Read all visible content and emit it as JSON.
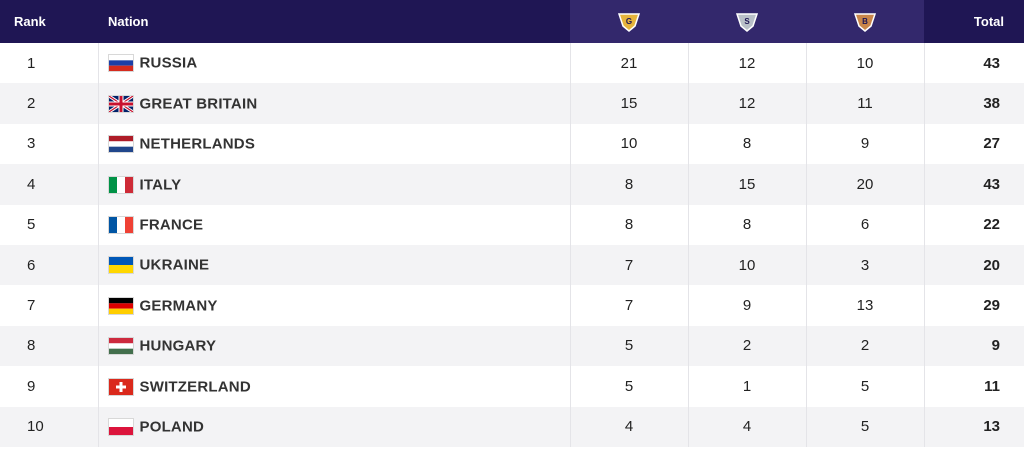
{
  "header": {
    "rank": "Rank",
    "nation": "Nation",
    "gold_letter": "G",
    "silver_letter": "S",
    "bronze_letter": "B",
    "total": "Total"
  },
  "colors": {
    "header_bg": "#1f1654",
    "medal_header_bg": "#33286c",
    "gold": "#e6b43c",
    "silver": "#b9c0c8",
    "bronze": "#c9864a",
    "row_alt": "#f3f3f5"
  },
  "rows": [
    {
      "rank": "1",
      "nation": "RUSSIA",
      "flag": "russia-flag-icon",
      "gold": "21",
      "silver": "12",
      "bronze": "10",
      "total": "43"
    },
    {
      "rank": "2",
      "nation": "GREAT BRITAIN",
      "flag": "great-britain-flag-icon",
      "gold": "15",
      "silver": "12",
      "bronze": "11",
      "total": "38"
    },
    {
      "rank": "3",
      "nation": "NETHERLANDS",
      "flag": "netherlands-flag-icon",
      "gold": "10",
      "silver": "8",
      "bronze": "9",
      "total": "27"
    },
    {
      "rank": "4",
      "nation": "ITALY",
      "flag": "italy-flag-icon",
      "gold": "8",
      "silver": "15",
      "bronze": "20",
      "total": "43"
    },
    {
      "rank": "5",
      "nation": "FRANCE",
      "flag": "france-flag-icon",
      "gold": "8",
      "silver": "8",
      "bronze": "6",
      "total": "22"
    },
    {
      "rank": "6",
      "nation": "UKRAINE",
      "flag": "ukraine-flag-icon",
      "gold": "7",
      "silver": "10",
      "bronze": "3",
      "total": "20"
    },
    {
      "rank": "7",
      "nation": "GERMANY",
      "flag": "germany-flag-icon",
      "gold": "7",
      "silver": "9",
      "bronze": "13",
      "total": "29"
    },
    {
      "rank": "8",
      "nation": "HUNGARY",
      "flag": "hungary-flag-icon",
      "gold": "5",
      "silver": "2",
      "bronze": "2",
      "total": "9"
    },
    {
      "rank": "9",
      "nation": "SWITZERLAND",
      "flag": "switzerland-flag-icon",
      "gold": "5",
      "silver": "1",
      "bronze": "5",
      "total": "11"
    },
    {
      "rank": "10",
      "nation": "POLAND",
      "flag": "poland-flag-icon",
      "gold": "4",
      "silver": "4",
      "bronze": "5",
      "total": "13"
    }
  ]
}
